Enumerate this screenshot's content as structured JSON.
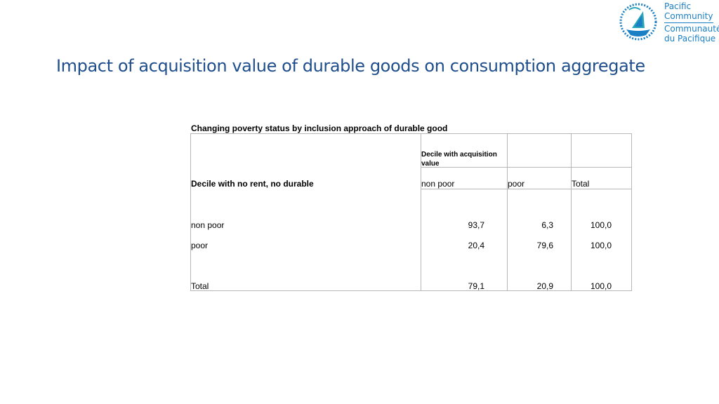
{
  "slide": {
    "title": "Impact of acquisition value of durable goods on consumption aggregate"
  },
  "logo": {
    "line1": "Pacific",
    "line2": "Community",
    "line3": "Communauté",
    "line4": "du Pacifique",
    "color": "#1a7fc4"
  },
  "table": {
    "caption": "Changing poverty status by inclusion approach of durable good",
    "row_header_label": "Decile with no rent, no durable",
    "col_group_label": "Decile with acquisition value",
    "columns": [
      "non poor",
      "poor",
      "Total"
    ],
    "rows": [
      {
        "label": "non poor",
        "values": [
          "93,7",
          "6,3",
          "100,0"
        ]
      },
      {
        "label": "poor",
        "values": [
          "20,4",
          "79,6",
          "100,0"
        ]
      },
      {
        "label": "Total",
        "values": [
          "79,1",
          "20,9",
          "100,0"
        ]
      }
    ]
  }
}
